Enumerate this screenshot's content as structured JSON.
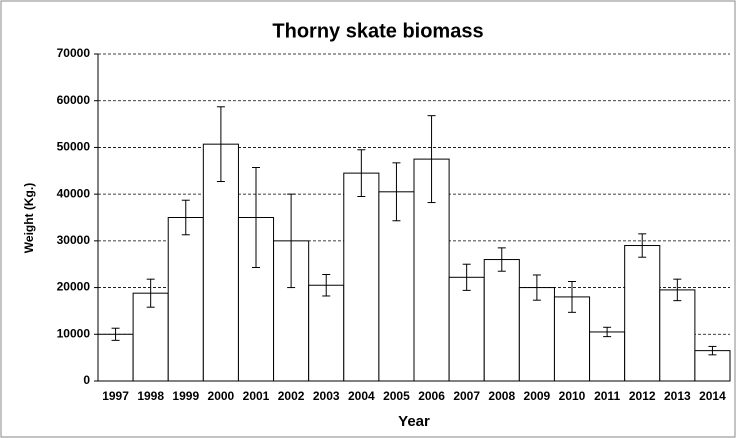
{
  "chart_data": {
    "type": "bar",
    "title": "Thorny skate biomass",
    "x_label": "Year",
    "y_label": "Weight (Kg.)",
    "categories": [
      "1997",
      "1998",
      "1999",
      "2000",
      "2001",
      "2002",
      "2003",
      "2004",
      "2005",
      "2006",
      "2007",
      "2008",
      "2009",
      "2010",
      "2011",
      "2012",
      "2013",
      "2014"
    ],
    "values": [
      10000,
      18800,
      35000,
      50700,
      35000,
      30000,
      20500,
      44500,
      40500,
      47500,
      22200,
      26000,
      20000,
      18000,
      10500,
      29000,
      19500,
      6500
    ],
    "errors": [
      1300,
      3000,
      3700,
      8000,
      10700,
      10000,
      2300,
      5000,
      6200,
      9300,
      2800,
      2500,
      2700,
      3300,
      1000,
      2500,
      2300,
      900
    ],
    "color": "#ffffff",
    "ylim": [
      0,
      70000
    ],
    "yticks": [
      0,
      10000,
      20000,
      30000,
      40000,
      50000,
      60000,
      70000
    ],
    "grid": true
  }
}
